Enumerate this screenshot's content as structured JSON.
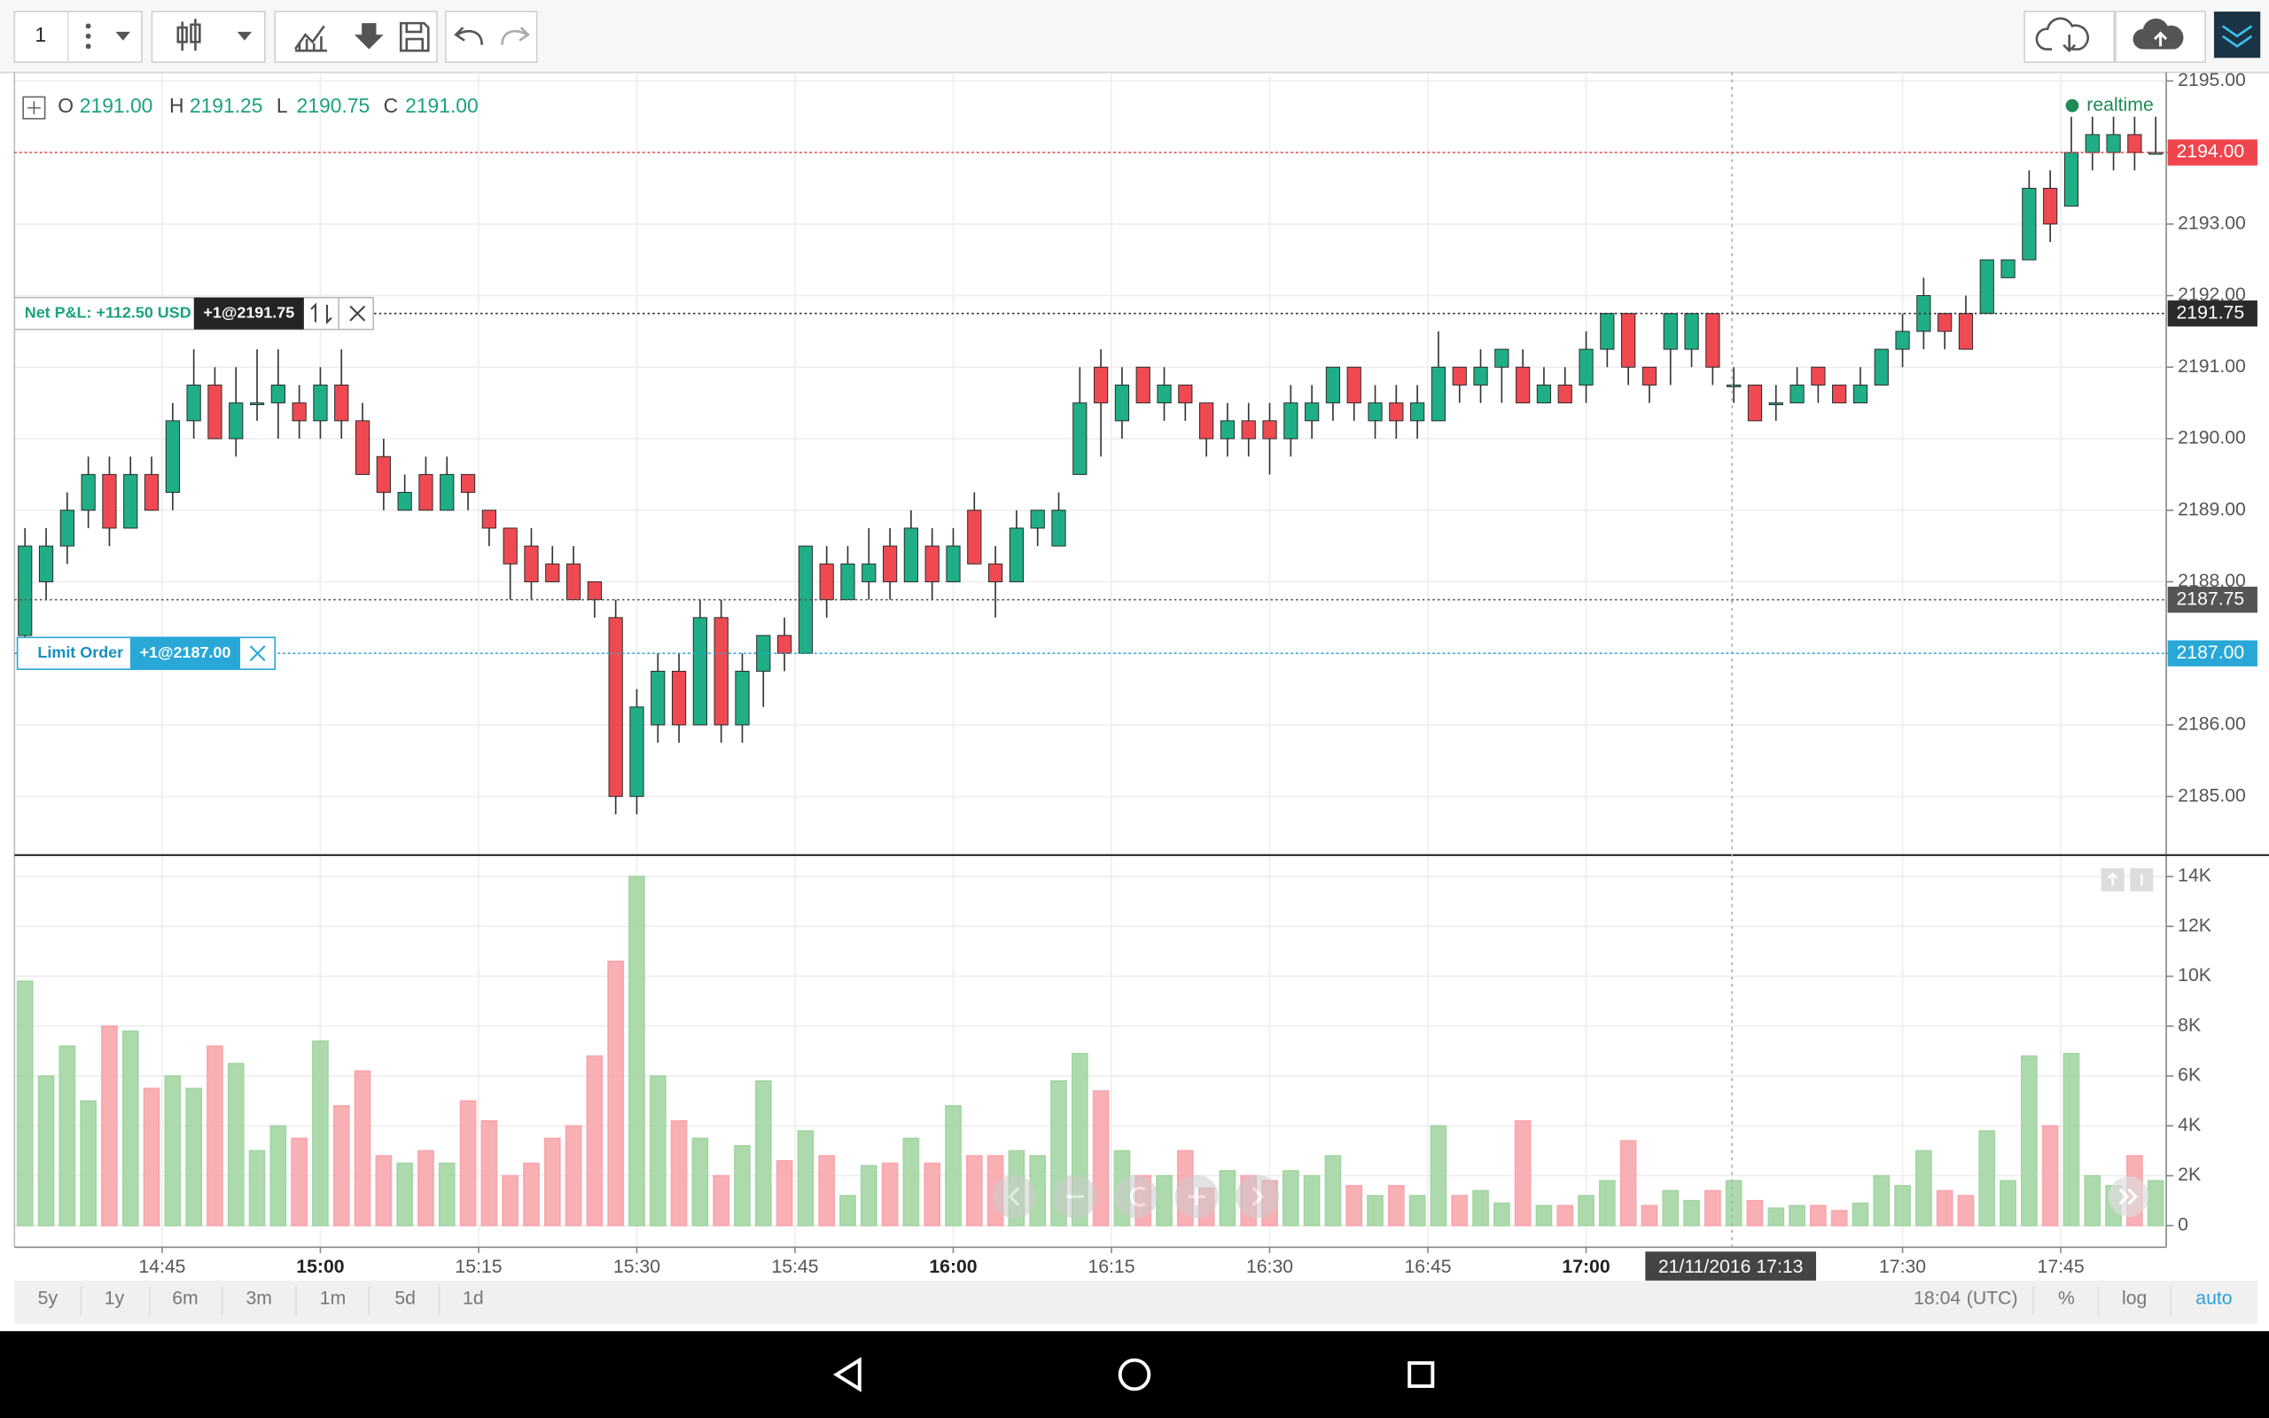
{
  "toolbar": {
    "interval": "1"
  },
  "chart_data": {
    "type": "candlestick",
    "ohlc_header": [
      {
        "key": "O",
        "value": "2191.00"
      },
      {
        "key": "H",
        "value": "2191.25"
      },
      {
        "key": "L",
        "value": "2190.75"
      },
      {
        "key": "C",
        "value": "2191.00"
      }
    ],
    "status": "realtime",
    "x": [
      "14:32",
      "14:34",
      "14:36",
      "14:38",
      "14:40",
      "14:42",
      "14:44",
      "14:46",
      "14:48",
      "14:50",
      "14:52",
      "14:54",
      "14:56",
      "14:58",
      "15:00",
      "15:02",
      "15:04",
      "15:06",
      "15:08",
      "15:10",
      "15:12",
      "15:14",
      "15:16",
      "15:18",
      "15:20",
      "15:22",
      "15:24",
      "15:26",
      "15:28",
      "15:30",
      "15:32",
      "15:34",
      "15:36",
      "15:38",
      "15:40",
      "15:42",
      "15:44",
      "15:46",
      "15:48",
      "15:50",
      "15:52",
      "15:54",
      "15:56",
      "15:58",
      "16:00",
      "16:02",
      "16:04",
      "16:06",
      "16:08",
      "16:10",
      "16:12",
      "16:14",
      "16:16",
      "16:18",
      "16:20",
      "16:22",
      "16:24",
      "16:26",
      "16:28",
      "16:30",
      "16:32",
      "16:34",
      "16:36",
      "16:38",
      "16:40",
      "16:42",
      "16:44",
      "16:46",
      "16:48",
      "16:50",
      "16:52",
      "16:54",
      "16:56",
      "16:58",
      "17:00",
      "17:02",
      "17:04",
      "17:06",
      "17:08",
      "17:10",
      "17:12",
      "17:14",
      "17:16",
      "17:18",
      "17:20",
      "17:22",
      "17:24",
      "17:26",
      "17:28",
      "17:30",
      "17:32",
      "17:34",
      "17:36",
      "17:38",
      "17:40",
      "17:42",
      "17:44",
      "17:46",
      "17:48",
      "17:50",
      "17:52",
      "17:54"
    ],
    "open": [
      2187.25,
      2188.0,
      2188.5,
      2189.0,
      2189.5,
      2188.75,
      2189.5,
      2189.25,
      2190.25,
      2190.75,
      2190.0,
      2190.5,
      2190.5,
      2190.5,
      2190.25,
      2190.75,
      2190.25,
      2189.75,
      2189.0,
      2189.5,
      2189.0,
      2189.5,
      2189.0,
      2188.75,
      2188.5,
      2188.25,
      2188.25,
      2188.0,
      2187.5,
      2185.0,
      2186.0,
      2186.75,
      2186.0,
      2187.5,
      2186.0,
      2186.75,
      2187.25,
      2187.0,
      2188.25,
      2187.75,
      2188.0,
      2188.5,
      2188.0,
      2188.5,
      2188.0,
      2189.0,
      2188.25,
      2188.0,
      2188.75,
      2188.5,
      2189.5,
      2191.0,
      2190.25,
      2191.0,
      2190.5,
      2190.75,
      2190.5,
      2190.0,
      2190.25,
      2190.25,
      2190.0,
      2190.25,
      2190.5,
      2191.0,
      2190.25,
      2190.5,
      2190.25,
      2190.25,
      2191.0,
      2190.75,
      2191.0,
      2191.0,
      2190.5,
      2190.75,
      2190.75,
      2191.25,
      2191.75,
      2191.0,
      2191.25,
      2191.25,
      2191.75,
      2190.75,
      2190.75,
      2190.5,
      2190.5,
      2191.0,
      2190.75,
      2190.5,
      2190.75,
      2191.25,
      2191.5,
      2191.75,
      2191.75,
      2191.75,
      2192.25,
      2192.5,
      2193.5,
      2193.25,
      2194.0,
      2194.0,
      2194.25,
      2194.0
    ],
    "high": [
      2188.75,
      2188.75,
      2189.25,
      2189.75,
      2189.75,
      2189.75,
      2189.75,
      2190.5,
      2191.25,
      2191.0,
      2191.0,
      2191.25,
      2191.25,
      2190.75,
      2191.0,
      2191.25,
      2190.5,
      2190.0,
      2189.5,
      2189.75,
      2189.75,
      2189.5,
      2189.0,
      2188.75,
      2188.75,
      2188.5,
      2188.5,
      2188.0,
      2187.75,
      2186.5,
      2187.0,
      2187.0,
      2187.75,
      2187.75,
      2187.0,
      2187.25,
      2187.5,
      2188.5,
      2188.5,
      2188.5,
      2188.75,
      2188.75,
      2189.0,
      2188.75,
      2188.75,
      2189.25,
      2188.5,
      2189.0,
      2189.0,
      2189.25,
      2191.0,
      2191.25,
      2191.0,
      2191.0,
      2191.0,
      2190.75,
      2190.5,
      2190.5,
      2190.5,
      2190.5,
      2190.75,
      2190.75,
      2191.0,
      2191.0,
      2190.75,
      2190.75,
      2190.75,
      2191.5,
      2191.0,
      2191.25,
      2191.25,
      2191.25,
      2191.0,
      2191.0,
      2191.5,
      2191.75,
      2191.75,
      2191.0,
      2191.75,
      2191.75,
      2191.75,
      2191.0,
      2190.75,
      2190.75,
      2191.0,
      2191.0,
      2190.75,
      2191.0,
      2191.25,
      2191.75,
      2192.25,
      2191.75,
      2192.0,
      2192.5,
      2192.5,
      2193.75,
      2193.75,
      2194.5,
      2194.5,
      2194.5,
      2194.5,
      2194.5
    ],
    "low": [
      2187.0,
      2187.75,
      2188.25,
      2188.75,
      2188.5,
      2188.75,
      2189.0,
      2189.0,
      2190.0,
      2190.0,
      2189.75,
      2190.25,
      2190.0,
      2190.0,
      2190.0,
      2190.0,
      2189.5,
      2189.0,
      2189.0,
      2189.0,
      2189.0,
      2189.0,
      2188.5,
      2187.75,
      2187.75,
      2188.0,
      2187.75,
      2187.5,
      2184.75,
      2184.75,
      2185.75,
      2185.75,
      2186.0,
      2185.75,
      2185.75,
      2186.25,
      2186.75,
      2187.0,
      2187.5,
      2187.75,
      2187.75,
      2187.75,
      2188.0,
      2187.75,
      2188.0,
      2188.25,
      2187.5,
      2188.0,
      2188.5,
      2188.5,
      2189.5,
      2189.75,
      2190.0,
      2190.5,
      2190.25,
      2190.25,
      2189.75,
      2189.75,
      2189.75,
      2189.5,
      2189.75,
      2190.0,
      2190.25,
      2190.25,
      2190.0,
      2190.0,
      2190.0,
      2190.25,
      2190.5,
      2190.5,
      2190.5,
      2190.5,
      2190.5,
      2190.5,
      2190.5,
      2191.0,
      2190.75,
      2190.5,
      2190.75,
      2191.0,
      2190.75,
      2190.5,
      2190.25,
      2190.25,
      2190.5,
      2190.5,
      2190.5,
      2190.5,
      2190.75,
      2191.0,
      2191.25,
      2191.25,
      2191.25,
      2191.75,
      2192.25,
      2192.5,
      2192.75,
      2193.25,
      2193.75,
      2193.75,
      2193.75,
      2194.0
    ],
    "close": [
      2188.5,
      2188.5,
      2189.0,
      2189.5,
      2188.75,
      2189.5,
      2189.0,
      2190.25,
      2190.75,
      2190.0,
      2190.5,
      2190.5,
      2190.75,
      2190.25,
      2190.75,
      2190.25,
      2189.5,
      2189.25,
      2189.25,
      2189.0,
      2189.5,
      2189.25,
      2188.75,
      2188.25,
      2188.0,
      2188.0,
      2187.75,
      2187.75,
      2185.0,
      2186.25,
      2186.75,
      2186.0,
      2187.5,
      2186.0,
      2186.75,
      2187.25,
      2187.0,
      2188.5,
      2187.75,
      2188.25,
      2188.25,
      2188.0,
      2188.75,
      2188.0,
      2188.5,
      2188.25,
      2188.0,
      2188.75,
      2189.0,
      2189.0,
      2190.5,
      2190.5,
      2190.75,
      2190.5,
      2190.75,
      2190.5,
      2190.0,
      2190.25,
      2190.0,
      2190.0,
      2190.5,
      2190.5,
      2191.0,
      2190.5,
      2190.5,
      2190.25,
      2190.5,
      2191.0,
      2190.75,
      2191.0,
      2191.25,
      2190.5,
      2190.75,
      2190.5,
      2191.25,
      2191.75,
      2191.0,
      2190.75,
      2191.75,
      2191.75,
      2191.0,
      2190.75,
      2190.25,
      2190.5,
      2190.75,
      2190.75,
      2190.5,
      2190.75,
      2191.25,
      2191.5,
      2192.0,
      2191.5,
      2191.25,
      2192.5,
      2192.5,
      2193.5,
      2193.0,
      2194.0,
      2194.25,
      2194.25,
      2194.0,
      2194.0
    ],
    "up_color": "#1fae86",
    "down_color": "#ef4a52",
    "ylim": [
      2184.2,
      2195.1
    ],
    "yticks": [
      {
        "value": 2185,
        "label": "2185.00"
      },
      {
        "value": 2186,
        "label": "2186.00"
      },
      {
        "value": 2187,
        "label": "2187.00"
      },
      {
        "value": 2188,
        "label": "2188.00"
      },
      {
        "value": 2189,
        "label": "2189.00"
      },
      {
        "value": 2190,
        "label": "2190.00"
      },
      {
        "value": 2191,
        "label": "2191.00"
      },
      {
        "value": 2192,
        "label": "2192.00"
      },
      {
        "value": 2193,
        "label": "2193.00"
      },
      {
        "value": 2194,
        "label": "2194.00"
      },
      {
        "value": 2195,
        "label": "2195.00"
      }
    ],
    "xlim": [
      "14:31",
      "17:55"
    ],
    "xticks": [
      "14:45",
      "15:00",
      "15:15",
      "15:30",
      "15:45",
      "16:00",
      "16:15",
      "16:30",
      "16:45",
      "17:00",
      "17:30",
      "17:45"
    ],
    "grid": true,
    "price_lines": [
      {
        "value": 2194,
        "label": "2194.00",
        "color": "#f0454c"
      },
      {
        "value": 2191.75,
        "label": "2191.75",
        "color": "#2b2b2b"
      },
      {
        "value": 2187.75,
        "label": "2187.75",
        "color": "#555555"
      },
      {
        "value": 2187,
        "label": "2187.00",
        "color": "#29a8d8"
      }
    ],
    "position": {
      "pnl": "Net P&L: +112.50 USD",
      "order": "+1@2191.75"
    },
    "limit_order": {
      "label": "Limit Order",
      "order": "+1@2187.00"
    },
    "crosshair_label": "21/11/2016 17:13",
    "volume": {
      "type": "bar",
      "values": [
        9800,
        6000,
        7200,
        5000,
        8000,
        7800,
        5500,
        6000,
        5500,
        7200,
        6500,
        3000,
        4000,
        3500,
        7400,
        4800,
        6200,
        2800,
        2500,
        3000,
        2500,
        5000,
        4200,
        2000,
        2500,
        3500,
        4000,
        6800,
        10600,
        14000,
        6000,
        4200,
        3500,
        2000,
        3200,
        5800,
        2600,
        3800,
        2800,
        1200,
        2400,
        2500,
        3500,
        2500,
        4800,
        2800,
        2800,
        3000,
        2800,
        5800,
        6900,
        5400,
        3000,
        2000,
        2000,
        3000,
        1500,
        2200,
        2000,
        1800,
        2200,
        2000,
        2800,
        1600,
        1200,
        1600,
        1200,
        4000,
        1200,
        1400,
        900,
        4200,
        800,
        800,
        1200,
        1800,
        3400,
        800,
        1400,
        1000,
        1400,
        1800,
        1000,
        700,
        800,
        800,
        600,
        900,
        2000,
        1600,
        3000,
        1400,
        1200,
        3800,
        1800,
        6800,
        4000,
        6900,
        2000,
        1600,
        2800,
        1800
      ],
      "up_color": "#9fd39f",
      "down_color": "#f7a2a8",
      "ylim": [
        -870,
        14800
      ],
      "yticks": [
        0,
        {
          "value": 2000,
          "label": "2K"
        },
        {
          "value": 4000,
          "label": "4K"
        },
        {
          "value": 6000,
          "label": "6K"
        },
        {
          "value": 8000,
          "label": "8K"
        },
        {
          "value": 10000,
          "label": "10K"
        },
        {
          "value": 12000,
          "label": "12K"
        },
        {
          "value": 14000,
          "label": "14K"
        }
      ]
    }
  },
  "range_buttons": [
    "5y",
    "1y",
    "6m",
    "3m",
    "1m",
    "5d",
    "1d"
  ],
  "footer": {
    "time": "18:04",
    "timezone": "(UTC)",
    "percent": "%",
    "log": "log",
    "auto": "auto"
  }
}
